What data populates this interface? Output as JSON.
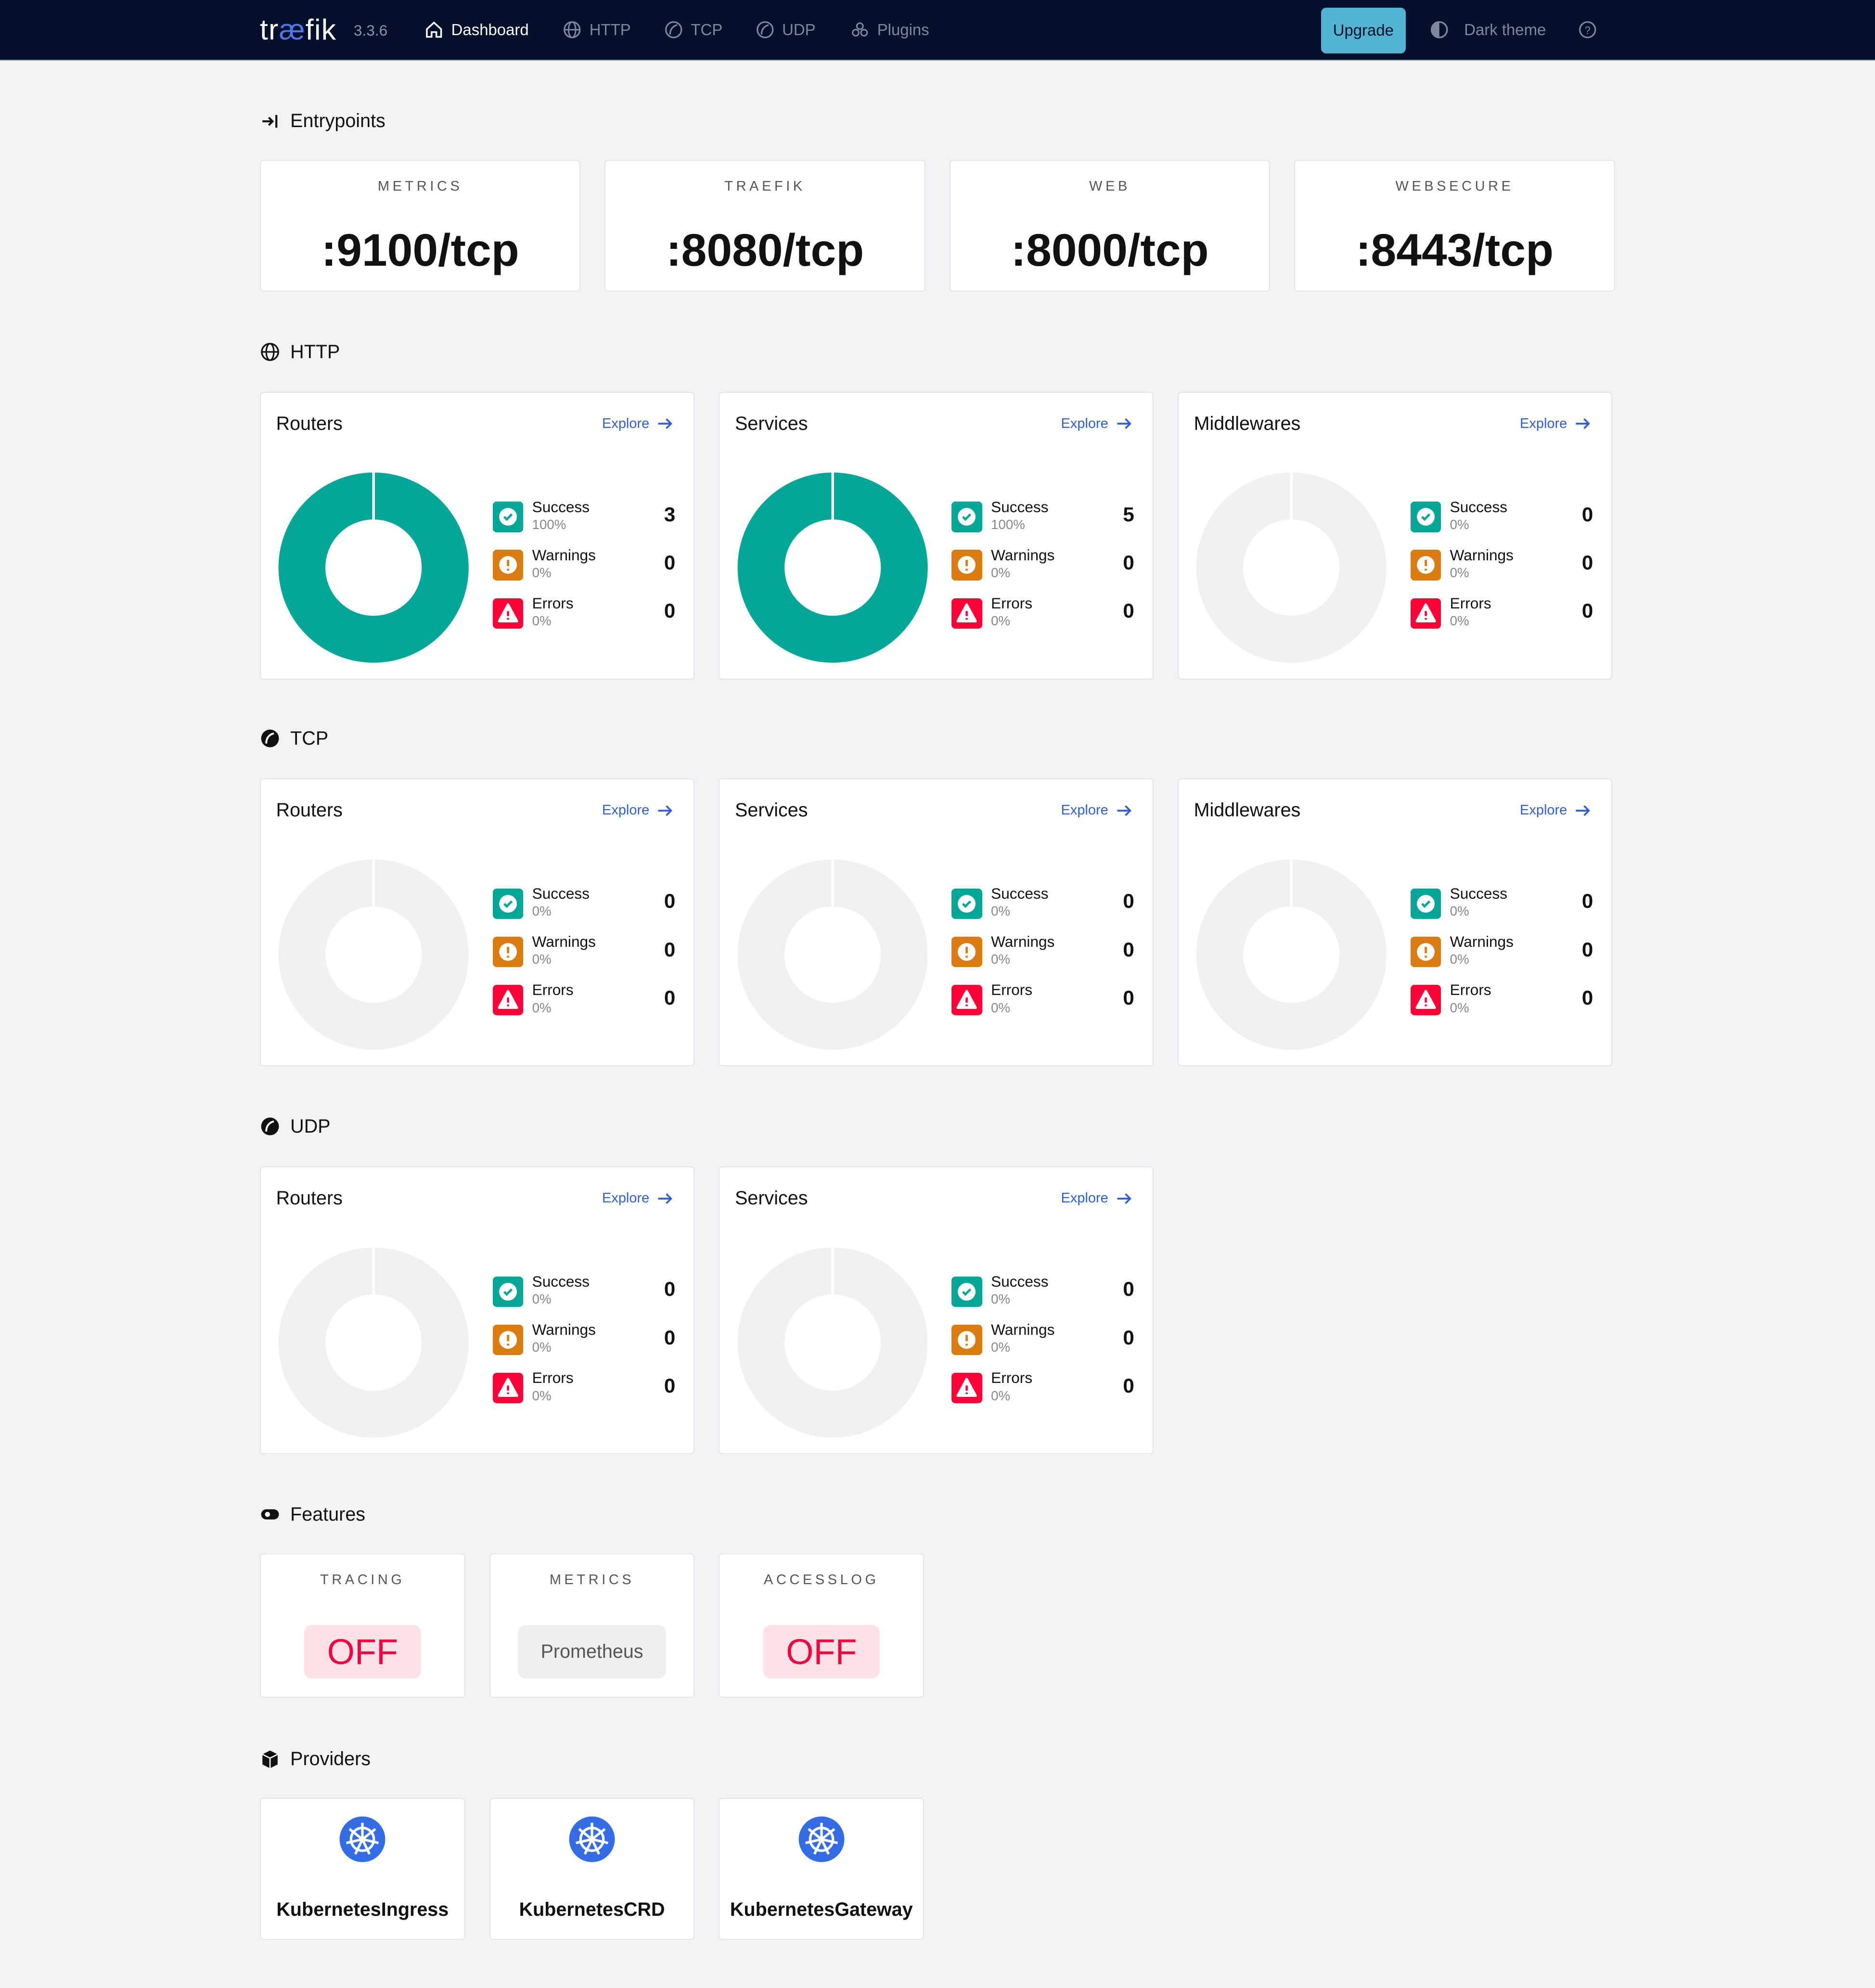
{
  "nav": {
    "logo_a": "tr",
    "logo_b": "æ",
    "logo_c": "fik",
    "version": "3.3.6",
    "items": [
      {
        "label": "Dashboard",
        "icon": "home-icon",
        "active": true
      },
      {
        "label": "HTTP",
        "icon": "globe-icon"
      },
      {
        "label": "TCP",
        "icon": "tcp-icon"
      },
      {
        "label": "UDP",
        "icon": "udp-icon"
      },
      {
        "label": "Plugins",
        "icon": "plugins-icon"
      }
    ],
    "upgrade": "Upgrade",
    "theme": "Dark theme",
    "help_icon": "help-icon"
  },
  "colors": {
    "success": "#03a697",
    "warning": "#db7c12",
    "error": "#ff0039",
    "accent": "#2f5fd6",
    "navbar": "#06102b",
    "empty": "#f1f1f1"
  },
  "entrypoints": {
    "title": "Entrypoints",
    "items": [
      {
        "name": "METRICS",
        "value": ":9100/tcp"
      },
      {
        "name": "TRAEFIK",
        "value": ":8080/tcp"
      },
      {
        "name": "WEB",
        "value": ":8000/tcp"
      },
      {
        "name": "WEBSECURE",
        "value": ":8443/tcp"
      }
    ]
  },
  "sections": [
    {
      "title": "HTTP",
      "icon": "globe-icon",
      "cards": [
        {
          "title": "Routers",
          "explore": "Explore",
          "success": {
            "label": "Success",
            "pct": "100%",
            "count": "3"
          },
          "warnings": {
            "label": "Warnings",
            "pct": "0%",
            "count": "0"
          },
          "errors": {
            "label": "Errors",
            "pct": "0%",
            "count": "0"
          }
        },
        {
          "title": "Services",
          "explore": "Explore",
          "success": {
            "label": "Success",
            "pct": "100%",
            "count": "5"
          },
          "warnings": {
            "label": "Warnings",
            "pct": "0%",
            "count": "0"
          },
          "errors": {
            "label": "Errors",
            "pct": "0%",
            "count": "0"
          }
        },
        {
          "title": "Middlewares",
          "explore": "Explore",
          "success": {
            "label": "Success",
            "pct": "0%",
            "count": "0"
          },
          "warnings": {
            "label": "Warnings",
            "pct": "0%",
            "count": "0"
          },
          "errors": {
            "label": "Errors",
            "pct": "0%",
            "count": "0"
          }
        }
      ]
    },
    {
      "title": "TCP",
      "icon": "tcp-icon",
      "cards": [
        {
          "title": "Routers",
          "explore": "Explore",
          "success": {
            "label": "Success",
            "pct": "0%",
            "count": "0"
          },
          "warnings": {
            "label": "Warnings",
            "pct": "0%",
            "count": "0"
          },
          "errors": {
            "label": "Errors",
            "pct": "0%",
            "count": "0"
          }
        },
        {
          "title": "Services",
          "explore": "Explore",
          "success": {
            "label": "Success",
            "pct": "0%",
            "count": "0"
          },
          "warnings": {
            "label": "Warnings",
            "pct": "0%",
            "count": "0"
          },
          "errors": {
            "label": "Errors",
            "pct": "0%",
            "count": "0"
          }
        },
        {
          "title": "Middlewares",
          "explore": "Explore",
          "success": {
            "label": "Success",
            "pct": "0%",
            "count": "0"
          },
          "warnings": {
            "label": "Warnings",
            "pct": "0%",
            "count": "0"
          },
          "errors": {
            "label": "Errors",
            "pct": "0%",
            "count": "0"
          }
        }
      ]
    },
    {
      "title": "UDP",
      "icon": "udp-icon",
      "cards": [
        {
          "title": "Routers",
          "explore": "Explore",
          "success": {
            "label": "Success",
            "pct": "0%",
            "count": "0"
          },
          "warnings": {
            "label": "Warnings",
            "pct": "0%",
            "count": "0"
          },
          "errors": {
            "label": "Errors",
            "pct": "0%",
            "count": "0"
          }
        },
        {
          "title": "Services",
          "explore": "Explore",
          "success": {
            "label": "Success",
            "pct": "0%",
            "count": "0"
          },
          "warnings": {
            "label": "Warnings",
            "pct": "0%",
            "count": "0"
          },
          "errors": {
            "label": "Errors",
            "pct": "0%",
            "count": "0"
          }
        }
      ]
    }
  ],
  "features": {
    "title": "Features",
    "items": [
      {
        "name": "TRACING",
        "value": "OFF",
        "state": "off"
      },
      {
        "name": "METRICS",
        "value": "Prometheus",
        "state": "on"
      },
      {
        "name": "ACCESSLOG",
        "value": "OFF",
        "state": "off"
      }
    ]
  },
  "providers": {
    "title": "Providers",
    "items": [
      {
        "name": "KubernetesIngress",
        "icon": "kubernetes-icon"
      },
      {
        "name": "KubernetesCRD",
        "icon": "kubernetes-icon"
      },
      {
        "name": "KubernetesGateway",
        "icon": "kubernetes-icon"
      }
    ]
  }
}
